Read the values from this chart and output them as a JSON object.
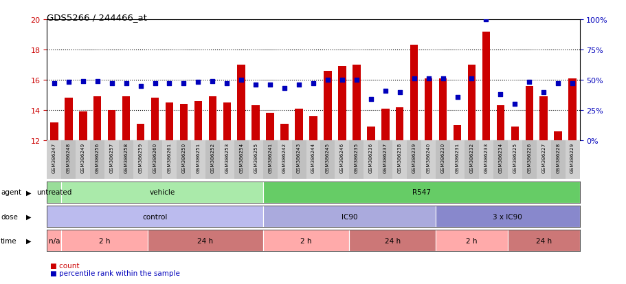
{
  "title": "GDS5266 / 244466_at",
  "samples": [
    "GSM386247",
    "GSM386248",
    "GSM386249",
    "GSM386256",
    "GSM386257",
    "GSM386258",
    "GSM386259",
    "GSM386260",
    "GSM386261",
    "GSM386250",
    "GSM386251",
    "GSM386252",
    "GSM386253",
    "GSM386254",
    "GSM386255",
    "GSM386241",
    "GSM386242",
    "GSM386243",
    "GSM386244",
    "GSM386245",
    "GSM386246",
    "GSM386235",
    "GSM386236",
    "GSM386237",
    "GSM386238",
    "GSM386239",
    "GSM386240",
    "GSM386230",
    "GSM386231",
    "GSM386232",
    "GSM386233",
    "GSM386234",
    "GSM386225",
    "GSM386226",
    "GSM386227",
    "GSM386228",
    "GSM386229"
  ],
  "counts": [
    13.2,
    14.8,
    13.9,
    14.9,
    14.0,
    14.9,
    13.1,
    14.8,
    14.5,
    14.4,
    14.6,
    14.9,
    14.5,
    17.0,
    14.3,
    13.8,
    13.1,
    14.1,
    13.6,
    16.6,
    16.9,
    17.0,
    12.9,
    14.1,
    14.2,
    18.3,
    16.1,
    16.1,
    13.0,
    17.0,
    19.2,
    14.3,
    12.9,
    15.6,
    14.9,
    12.6,
    16.1
  ],
  "percentiles": [
    47,
    48,
    49,
    49,
    47,
    47,
    45,
    47,
    47,
    47,
    48,
    49,
    47,
    50,
    46,
    46,
    43,
    46,
    47,
    50,
    50,
    50,
    34,
    41,
    40,
    51,
    51,
    51,
    36,
    51,
    100,
    38,
    30,
    48,
    40,
    47,
    47
  ],
  "ylim_left": [
    12,
    20
  ],
  "ylim_right": [
    0,
    100
  ],
  "yticks_left": [
    12,
    14,
    16,
    18,
    20
  ],
  "yticks_right": [
    0,
    25,
    50,
    75,
    100
  ],
  "bar_color": "#CC0000",
  "dot_color": "#0000BB",
  "bar_bottom": 12,
  "agent_row": [
    {
      "label": "untreated",
      "start": 0,
      "end": 1,
      "color": "#99DD99"
    },
    {
      "label": "vehicle",
      "start": 1,
      "end": 15,
      "color": "#AAEAAA"
    },
    {
      "label": "R547",
      "start": 15,
      "end": 37,
      "color": "#66CC66"
    }
  ],
  "dose_row": [
    {
      "label": "control",
      "start": 0,
      "end": 15,
      "color": "#BBBBEE"
    },
    {
      "label": "IC90",
      "start": 15,
      "end": 27,
      "color": "#AAAADD"
    },
    {
      "label": "3 x IC90",
      "start": 27,
      "end": 37,
      "color": "#8888CC"
    }
  ],
  "time_row": [
    {
      "label": "n/a",
      "start": 0,
      "end": 1,
      "color": "#FFAAAA"
    },
    {
      "label": "2 h",
      "start": 1,
      "end": 7,
      "color": "#FFAAAA"
    },
    {
      "label": "24 h",
      "start": 7,
      "end": 15,
      "color": "#CC7777"
    },
    {
      "label": "2 h",
      "start": 15,
      "end": 21,
      "color": "#FFAAAA"
    },
    {
      "label": "24 h",
      "start": 21,
      "end": 27,
      "color": "#CC7777"
    },
    {
      "label": "2 h",
      "start": 27,
      "end": 32,
      "color": "#FFAAAA"
    },
    {
      "label": "24 h",
      "start": 32,
      "end": 37,
      "color": "#CC7777"
    }
  ],
  "bg_color": "#FFFFFF",
  "bar_color_label": "#CC0000",
  "right_axis_color": "#0000BB",
  "legend_count": "count",
  "legend_pct": "percentile rank within the sample"
}
